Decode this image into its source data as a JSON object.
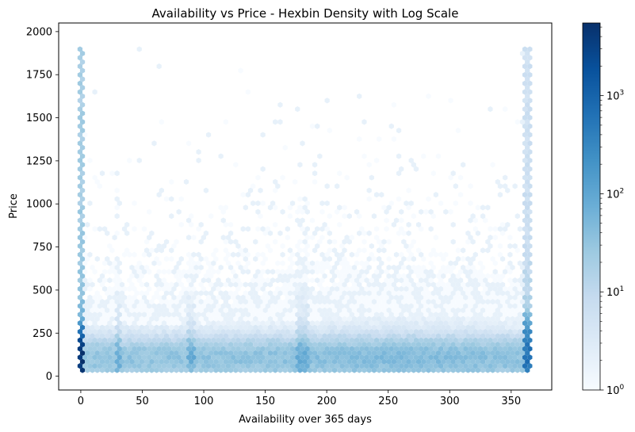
{
  "chart_data": {
    "type": "heatmap",
    "subtype": "hexbin",
    "title": "Availability vs Price - Hexbin Density with Log Scale",
    "xlabel": "Availability over 365 days",
    "ylabel": "Price",
    "xlim": [
      -18,
      383
    ],
    "ylim": [
      -80,
      2050
    ],
    "x_ticks": [
      0,
      50,
      100,
      150,
      200,
      250,
      300,
      350
    ],
    "y_ticks": [
      0,
      250,
      500,
      750,
      1000,
      1250,
      1500,
      1750,
      2000
    ],
    "colorbar": {
      "scale": "log",
      "range": [
        1,
        5500
      ],
      "colormap": "Blues",
      "ticks": [
        {
          "value": 1,
          "base": "10",
          "exp": "0"
        },
        {
          "value": 10,
          "base": "10",
          "exp": "1"
        },
        {
          "value": 100,
          "base": "10",
          "exp": "2"
        },
        {
          "value": 1000,
          "base": "10",
          "exp": "3"
        }
      ]
    },
    "density_summary": {
      "highest_density": "availability 0, price 25-250",
      "secondary_density": "availability 365, price 25-250",
      "dense_band": "price 25-300 across all availability values",
      "sparse_region": "price above 750"
    }
  }
}
